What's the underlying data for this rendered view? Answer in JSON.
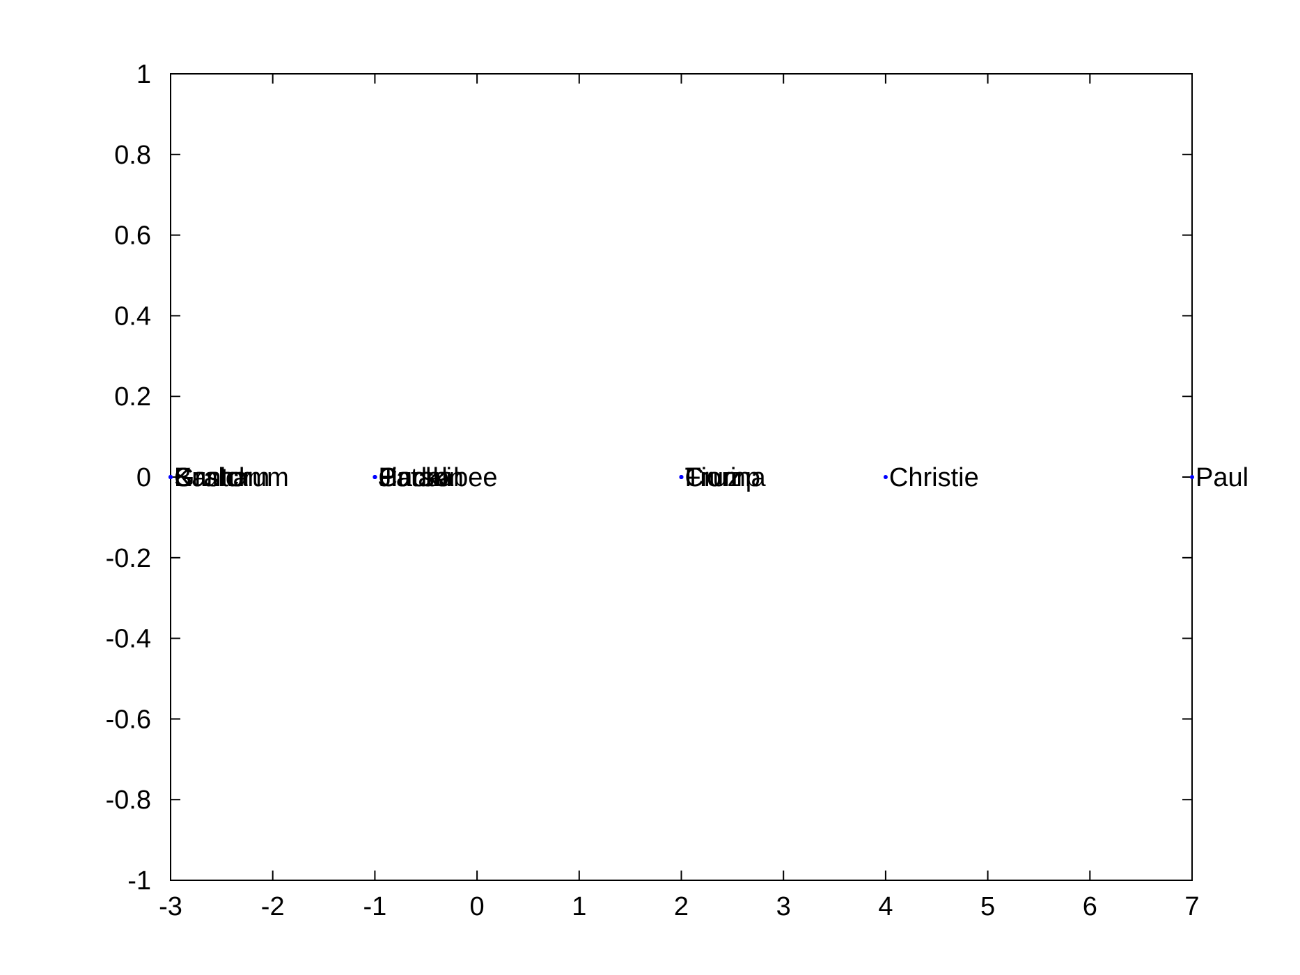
{
  "chart_data": {
    "type": "scatter",
    "title": "",
    "xlabel": "",
    "ylabel": "",
    "xlim": [
      -3,
      7
    ],
    "ylim": [
      -1,
      1
    ],
    "xticks": [
      -3,
      -2,
      -1,
      0,
      1,
      2,
      3,
      4,
      5,
      6,
      7
    ],
    "yticks": [
      -1,
      -0.8,
      -0.6,
      -0.4,
      -0.2,
      0,
      0.2,
      0.4,
      0.6,
      0.8,
      1
    ],
    "xtick_labels": [
      "-3",
      "-2",
      "-1",
      "0",
      "1",
      "2",
      "3",
      "4",
      "5",
      "6",
      "7"
    ],
    "ytick_labels": [
      "-1",
      "-0.8",
      "-0.6",
      "-0.4",
      "-0.2",
      "0",
      "0.2",
      "0.4",
      "0.6",
      "0.8",
      "1"
    ],
    "grid": false,
    "marker_color": "#0000ff",
    "points": [
      {
        "label": "Bush",
        "x": -3,
        "y": 0
      },
      {
        "label": "Graham",
        "x": -3,
        "y": 0
      },
      {
        "label": "Santorum",
        "x": -3,
        "y": 0
      },
      {
        "label": "Kasich",
        "x": -3,
        "y": 0
      },
      {
        "label": "Huckabee",
        "x": -1,
        "y": 0
      },
      {
        "label": "Pataki",
        "x": -1,
        "y": 0
      },
      {
        "label": "Jindal",
        "x": -1,
        "y": 0
      },
      {
        "label": "Carson",
        "x": -1,
        "y": 0
      },
      {
        "label": "Fiorina",
        "x": 2,
        "y": 0
      },
      {
        "label": "Trump",
        "x": 2,
        "y": 0
      },
      {
        "label": "Cruz",
        "x": 2,
        "y": 0
      },
      {
        "label": "Christie",
        "x": 4,
        "y": 0
      },
      {
        "label": "Paul",
        "x": 7,
        "y": 0
      }
    ]
  }
}
